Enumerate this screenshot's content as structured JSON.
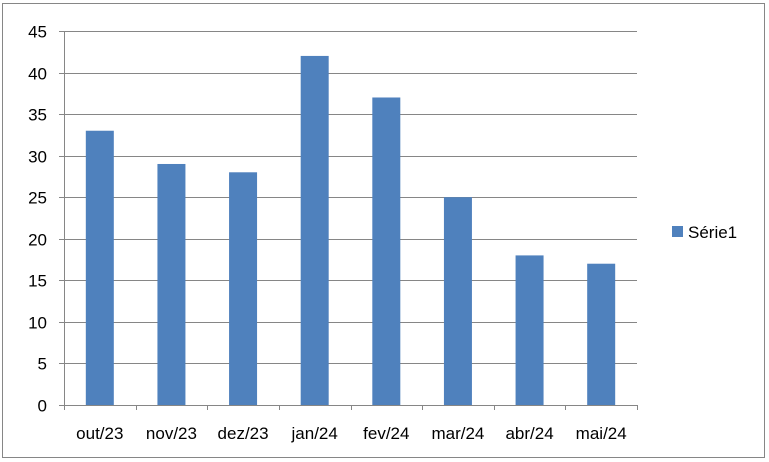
{
  "chart_data": {
    "type": "bar",
    "categories": [
      "out/23",
      "nov/23",
      "dez/23",
      "jan/24",
      "fev/24",
      "mar/24",
      "abr/24",
      "mai/24"
    ],
    "series": [
      {
        "name": "Série1",
        "values": [
          33,
          29,
          28,
          42,
          37,
          25,
          18,
          17
        ],
        "color": "#4F81BD"
      }
    ],
    "title": "",
    "xlabel": "",
    "ylabel": "",
    "ylim": [
      0,
      45
    ],
    "yticks": [
      0,
      5,
      10,
      15,
      20,
      25,
      30,
      35,
      40,
      45
    ],
    "grid": true,
    "legend_position": "right"
  }
}
